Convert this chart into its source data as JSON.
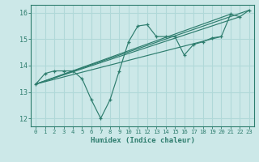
{
  "bg_color": "#cce8e8",
  "grid_color": "#b0d8d8",
  "line_color": "#2e7d6e",
  "xlabel": "Humidex (Indice chaleur)",
  "xlim": [
    -0.5,
    23.5
  ],
  "ylim": [
    11.7,
    16.3
  ],
  "yticks": [
    12,
    13,
    14,
    15,
    16
  ],
  "xticks": [
    0,
    1,
    2,
    3,
    4,
    5,
    6,
    7,
    8,
    9,
    10,
    11,
    12,
    13,
    14,
    15,
    16,
    17,
    18,
    19,
    20,
    21,
    22,
    23
  ],
  "series": [
    [
      0,
      13.3
    ],
    [
      1,
      13.7
    ],
    [
      2,
      13.8
    ],
    [
      3,
      13.8
    ],
    [
      4,
      13.8
    ],
    [
      5,
      13.5
    ],
    [
      6,
      12.7
    ],
    [
      7,
      12.0
    ],
    [
      8,
      12.7
    ],
    [
      9,
      13.8
    ],
    [
      10,
      14.9
    ],
    [
      11,
      15.5
    ],
    [
      12,
      15.55
    ],
    [
      13,
      15.1
    ],
    [
      14,
      15.1
    ],
    [
      15,
      15.1
    ],
    [
      16,
      14.4
    ],
    [
      17,
      14.8
    ],
    [
      18,
      14.9
    ],
    [
      19,
      15.05
    ],
    [
      20,
      15.1
    ],
    [
      21,
      15.95
    ],
    [
      22,
      15.85
    ],
    [
      23,
      16.1
    ]
  ],
  "line2": [
    [
      0,
      13.3
    ],
    [
      23,
      16.1
    ]
  ],
  "line3": [
    [
      0,
      13.3
    ],
    [
      21,
      15.95
    ]
  ],
  "line4": [
    [
      0,
      13.3
    ],
    [
      22,
      15.85
    ]
  ],
  "line5": [
    [
      0,
      13.3
    ],
    [
      20,
      15.1
    ]
  ]
}
